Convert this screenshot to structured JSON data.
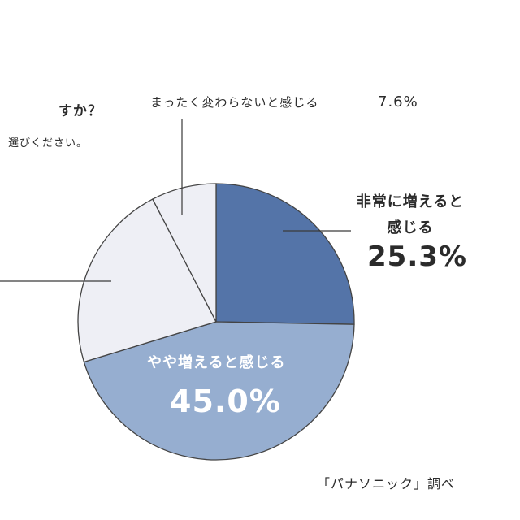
{
  "question": {
    "line1": "すか？",
    "line2": "選びください。"
  },
  "chart_data": {
    "type": "pie",
    "start_angle_deg": 0,
    "direction": "clockwise",
    "slices": [
      {
        "label": "非常に増えると感じる",
        "value": 25.3,
        "display": "25.3%",
        "color": "#5474a8"
      },
      {
        "label": "やや増えると感じる",
        "value": 45.0,
        "display": "45.0%",
        "color": "#96aed0"
      },
      {
        "label": "",
        "value": 22.1,
        "display": "",
        "color": "#eeeff5"
      },
      {
        "label": "まったく変わらないと感じる",
        "value": 7.6,
        "display": "7.6%",
        "color": "#eeeff5"
      }
    ]
  },
  "labels": {
    "small_text": "まったく変わらないと感じる",
    "small_value": "7.6%",
    "big_text": "非常に増えると感じる",
    "big_value": "25.3%",
    "mid_text": "やや増えると感じる",
    "mid_value": "45.0%"
  },
  "source": "「パナソニック」調べ"
}
